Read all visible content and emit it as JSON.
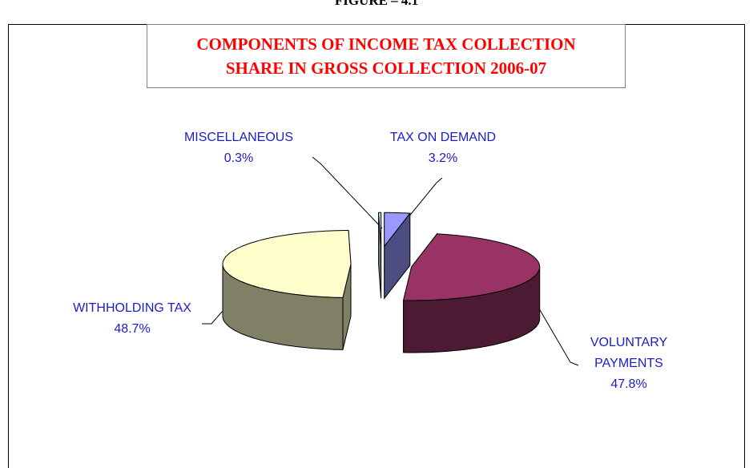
{
  "chart_data": {
    "type": "pie",
    "figure_label": "FIGURE – 4.1",
    "title": [
      "COMPONENTS OF INCOME TAX COLLECTION",
      "SHARE IN GROSS COLLECTION 2006-07"
    ],
    "categories": [
      "TAX ON DEMAND",
      "VOLUNTARY PAYMENTS",
      "WITHHOLDING TAX",
      "MISCELLANEOUS"
    ],
    "values": [
      3.2,
      47.8,
      48.7,
      0.3
    ],
    "value_labels": [
      "3.2%",
      "47.8%",
      "48.7%",
      "0.3%"
    ],
    "colors": [
      "#9999ff",
      "#993366",
      "#ffffcc",
      "#ccffff"
    ],
    "three_d": true,
    "exploded": true
  }
}
